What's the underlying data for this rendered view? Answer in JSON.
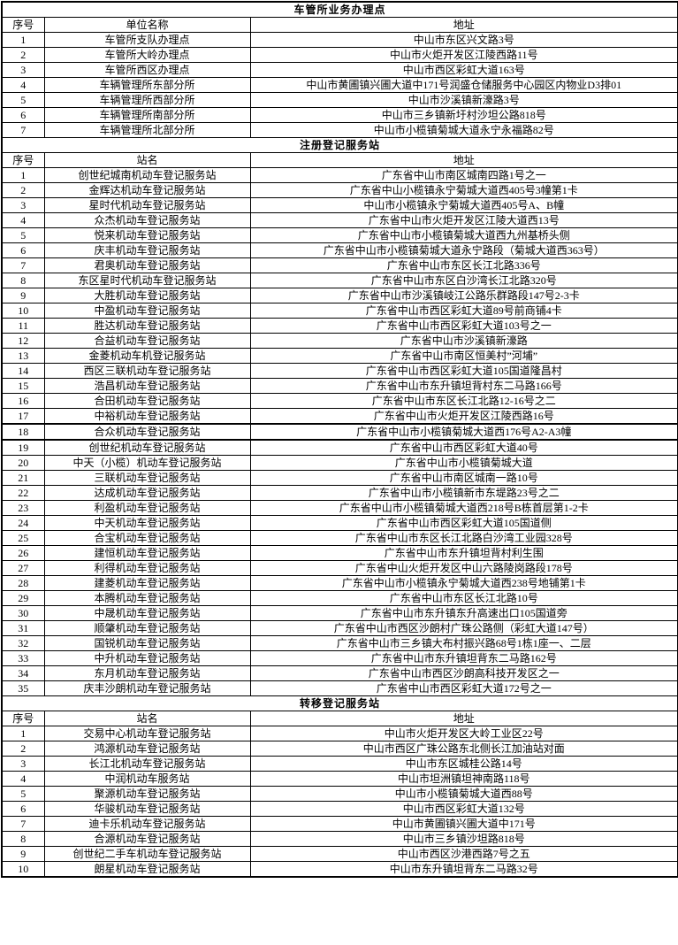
{
  "colors": {
    "border": "#000000",
    "text": "#000000",
    "background": "#ffffff"
  },
  "sections": [
    {
      "title": "车管所业务办理点",
      "headers": [
        "序号",
        "单位名称",
        "地址"
      ],
      "rows": [
        [
          "1",
          "车管所支队办理点",
          "中山市东区兴文路3号"
        ],
        [
          "2",
          "车管所大岭办理点",
          "中山市火炬开发区江陵西路11号"
        ],
        [
          "3",
          "车管所西区办理点",
          "中山市西区彩虹大道163号"
        ],
        [
          "4",
          "车辆管理所东部分所",
          "中山市黄圃镇兴圃大道中171号润盛仓储服务中心园区内物业D3排01"
        ],
        [
          "5",
          "车辆管理所西部分所",
          "中山市沙溪镇新濠路3号"
        ],
        [
          "6",
          "车辆管理所南部分所",
          "中山市三乡镇新圩村沙坦公路818号"
        ],
        [
          "7",
          "车辆管理所北部分所",
          "中山市小榄镇菊城大道永宁永福路82号"
        ]
      ]
    },
    {
      "title": "注册登记服务站",
      "headers": [
        "序号",
        "站名",
        "地址"
      ],
      "thick_border_rows": [
        18
      ],
      "rows": [
        [
          "1",
          "创世纪城南机动车登记服务站",
          "广东省中山市南区城南四路1号之一"
        ],
        [
          "2",
          "金辉达机动车登记服务站",
          "广东省中山小榄镇永宁菊城大道西405号3幢第1卡"
        ],
        [
          "3",
          "星时代机动车登记服务站",
          "中山市小榄镇永宁菊城大道西405号A、B幢"
        ],
        [
          "4",
          "众杰机动车登记服务站",
          "广东省中山市火炬开发区江陵大道西13号"
        ],
        [
          "5",
          "悦来机动车登记服务站",
          "广东省中山市小榄镇菊城大道西九州基桥头侧"
        ],
        [
          "6",
          "庆丰机动车登记服务站",
          "广东省中山市小榄镇菊城大道永宁路段（菊城大道西363号）"
        ],
        [
          "7",
          "君奥机动车登记服务站",
          "广东省中山市东区长江北路336号"
        ],
        [
          "8",
          "东区星时代机动车登记服务站",
          "广东省中山市东区白沙湾长江北路320号"
        ],
        [
          "9",
          "大胜机动车登记服务站",
          "广东省中山市沙溪镇岐江公路乐群路段147号2-3卡"
        ],
        [
          "10",
          "中盈机动车登记服务站",
          "广东省中山市西区彩虹大道89号前商铺4卡"
        ],
        [
          "11",
          "胜达机动车登记服务站",
          "广东省中山市西区彩虹大道103号之一"
        ],
        [
          "12",
          "合益机动车登记服务站",
          "广东省中山市沙溪镇新濠路"
        ],
        [
          "13",
          "金菱机动车机登记服务站",
          "广东省中山市南区恒美村”河埔”"
        ],
        [
          "14",
          "西区三联机动车登记服务站",
          "广东省中山市西区彩虹大道105国道隆昌村"
        ],
        [
          "15",
          "浩昌机动车登记服务站",
          "广东省中山市东升镇坦背村东二马路166号"
        ],
        [
          "16",
          "合田机动车登记服务站",
          "广东省中山市东区长江北路12-16号之二"
        ],
        [
          "17",
          "中裕机动车登记服务站",
          "广东省中山市火炬开发区江陵西路16号"
        ],
        [
          "18",
          "合众机动车登记服务站",
          "广东省中山市小榄镇菊城大道西176号A2-A3幢"
        ],
        [
          "19",
          "创世纪机动车登记服务站",
          "广东省中山市西区彩虹大道40号"
        ],
        [
          "20",
          "中天（小榄）机动车登记服务站",
          "广东省中山市小榄镇菊城大道"
        ],
        [
          "21",
          "三联机动车登记服务站",
          "广东省中山市南区城南一路10号"
        ],
        [
          "22",
          "达成机动车登记服务站",
          "广东省中山市小榄镇新市东堤路23号之二"
        ],
        [
          "23",
          "利盈机动车登记服务站",
          "广东省中山市小榄镇菊城大道西218号B栋首层第1-2卡"
        ],
        [
          "24",
          "中天机动车登记服务站",
          "广东省中山市西区彩虹大道105国道侧"
        ],
        [
          "25",
          "合宝机动车登记服务站",
          "广东省中山市东区长江北路白沙湾工业园328号"
        ],
        [
          "26",
          "建恒机动车登记服务站",
          "广东省中山市东升镇坦背村利生围"
        ],
        [
          "27",
          "利得机动车登记服务站",
          "广东省中山火炬开发区中山六路陵岗路段178号"
        ],
        [
          "28",
          "建菱机动车登记服务站",
          "广东省中山市小榄镇永宁菊城大道西238号地铺第1卡"
        ],
        [
          "29",
          "本腾机动车登记服务站",
          "广东省中山市东区长江北路10号"
        ],
        [
          "30",
          "中晟机动车登记服务站",
          "广东省中山市东升镇东升高速出口105国道旁"
        ],
        [
          "31",
          "顺肇机动车登记服务站",
          "广东省中山市西区沙朗村广珠公路侧（彩虹大道147号）"
        ],
        [
          "32",
          "国锐机动车登记服务站",
          "广东省中山市三乡镇大布村振兴路68号1栋1座一、二层"
        ],
        [
          "33",
          "中升机动车登记服务站",
          "广东省中山市东升镇坦背东二马路162号"
        ],
        [
          "34",
          "东月机动车登记服务站",
          "广东省中山市西区沙朗高科技开发区之一"
        ],
        [
          "35",
          "庆丰沙朗机动车登记服务站",
          "广东省中山市西区彩虹大道172号之一"
        ]
      ]
    },
    {
      "title": "转移登记服务站",
      "headers": [
        "序号",
        "站名",
        "地址"
      ],
      "rows": [
        [
          "1",
          "交易中心机动车登记服务站",
          "中山市火炬开发区大岭工业区22号"
        ],
        [
          "2",
          "鸿源机动车登记服务站",
          "中山市西区广珠公路东北侧长江加油站对面"
        ],
        [
          "3",
          "长江北机动车登记服务站",
          "中山市东区城桂公路14号"
        ],
        [
          "4",
          "中润机动车服务站",
          "中山市坦洲镇坦神南路118号"
        ],
        [
          "5",
          "聚源机动车登记服务站",
          "中山市小榄镇菊城大道西88号"
        ],
        [
          "6",
          "华骏机动车登记服务站",
          "中山市西区彩虹大道132号"
        ],
        [
          "7",
          "迪卡乐机动车登记服务站",
          "中山市黄圃镇兴圃大道中171号"
        ],
        [
          "8",
          "合源机动车登记服务站",
          "中山市三乡镇沙坦路818号"
        ],
        [
          "9",
          "创世纪二手车机动车登记服务站",
          "中山市西区沙港西路7号之五"
        ],
        [
          "10",
          "朗星机动车登记服务站",
          "中山市东升镇坦背东二马路32号"
        ]
      ]
    }
  ]
}
